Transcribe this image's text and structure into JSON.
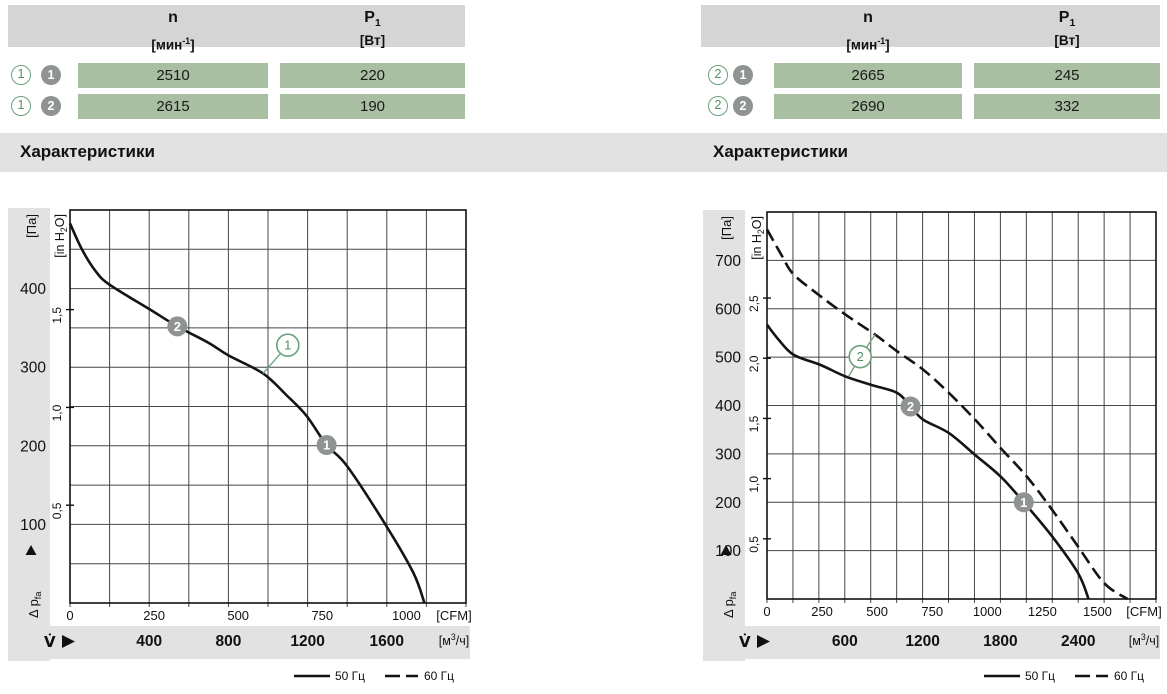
{
  "colors": {
    "accent_green": "#6aa17b",
    "accent_green_text": "#4f9066",
    "marker_gray": "#8f9392",
    "cell_green": "#a9bfa1",
    "band_gray": "#e2e2e2",
    "header_gray": "#d5d5d5",
    "grid": "#474747",
    "ink": "#111111",
    "curve": "#141414"
  },
  "panels": [
    {
      "section_title": "Характеристики",
      "table": {
        "headers": [
          {
            "base": "n",
            "sub": "",
            "unit_parts": [
              [
                "t",
                "[мин"
              ],
              [
                "sup",
                "-1"
              ],
              [
                "t",
                "]"
              ]
            ]
          },
          {
            "base": "P",
            "sub": "1",
            "unit_parts": [
              [
                "t",
                "[Вт]"
              ]
            ]
          }
        ],
        "rows": [
          {
            "curve_ref": "1",
            "point_ref": "1",
            "values": [
              "2510",
              "220"
            ]
          },
          {
            "curve_ref": "1",
            "point_ref": "2",
            "values": [
              "2615",
              "190"
            ]
          }
        ]
      }
    },
    {
      "section_title": "Характеристики",
      "table": {
        "headers": [
          {
            "base": "n",
            "sub": "",
            "unit_parts": [
              [
                "t",
                "[мин"
              ],
              [
                "sup",
                "-1"
              ],
              [
                "t",
                "]"
              ]
            ]
          },
          {
            "base": "P",
            "sub": "1",
            "unit_parts": [
              [
                "t",
                "[Вт]"
              ]
            ]
          }
        ],
        "rows": [
          {
            "curve_ref": "2",
            "point_ref": "1",
            "values": [
              "2665",
              "245"
            ]
          },
          {
            "curve_ref": "2",
            "point_ref": "2",
            "values": [
              "2690",
              "332"
            ]
          }
        ]
      }
    }
  ],
  "chart_data": [
    {
      "type": "line",
      "title": "Характеристики",
      "x1": {
        "label_parts": [
          [
            "t",
            "[м"
          ],
          [
            "sup",
            "3"
          ],
          [
            "t",
            "/ч]"
          ]
        ],
        "min": 0,
        "max": 2000,
        "grid_step": 200,
        "ticks": [
          400,
          800,
          1200,
          1600
        ]
      },
      "x2": {
        "label": "[CFM]",
        "ticks": [
          0,
          250,
          500,
          750,
          1000
        ],
        "to_x1": 1.699
      },
      "y1": {
        "label": "[Па]",
        "min": 0,
        "max": 500,
        "grid_step": 50,
        "ticks": [
          100,
          200,
          300,
          400
        ]
      },
      "y2": {
        "label_parts": [
          [
            "t",
            "[in H"
          ],
          [
            "sub",
            "2"
          ],
          [
            "t",
            "O]"
          ]
        ],
        "ticks": [
          0.5,
          1.0,
          1.5
        ],
        "to_y1": 248.84
      },
      "flow_symbol": "V̇",
      "pressure_axis_parts": [
        [
          "t",
          "Δ p"
        ],
        [
          "sub",
          "fa"
        ]
      ],
      "series": [
        {
          "name": "50 Гц",
          "style": "solid",
          "points": [
            [
              0,
              483
            ],
            [
              60,
              450
            ],
            [
              130,
              422
            ],
            [
              200,
              405
            ],
            [
              400,
              374
            ],
            [
              542,
              352
            ],
            [
              700,
              331
            ],
            [
              800,
              315
            ],
            [
              975,
              292
            ],
            [
              1095,
              264
            ],
            [
              1195,
              238
            ],
            [
              1296,
              201
            ],
            [
              1400,
              174
            ],
            [
              1600,
              97
            ],
            [
              1735,
              38
            ],
            [
              1790,
              0
            ]
          ]
        }
      ],
      "curve_labels": [
        {
          "ref": "1",
          "x": 1100,
          "y": 328,
          "targets": [
            [
              975,
              292
            ]
          ]
        }
      ],
      "point_markers": [
        {
          "ref": "2",
          "x": 542,
          "y": 352
        },
        {
          "ref": "1",
          "x": 1296,
          "y": 201
        }
      ],
      "legend": [
        {
          "style": "solid",
          "label": "50 Гц"
        },
        {
          "style": "dashed",
          "label": "60 Гц"
        }
      ]
    },
    {
      "type": "line",
      "title": "Характеристики",
      "x1": {
        "label_parts": [
          [
            "t",
            "[м"
          ],
          [
            "sup",
            "3"
          ],
          [
            "t",
            "/ч]"
          ]
        ],
        "min": 0,
        "max": 3000,
        "grid_step": 200,
        "ticks": [
          600,
          1200,
          1800,
          2400
        ]
      },
      "x2": {
        "label": "[CFM]",
        "ticks": [
          0,
          250,
          500,
          750,
          1000,
          1250,
          1500
        ],
        "to_x1": 1.699
      },
      "y1": {
        "label": "[Па]",
        "min": 0,
        "max": 800,
        "grid_step": 100,
        "ticks": [
          100,
          200,
          300,
          400,
          500,
          600,
          700
        ]
      },
      "y2": {
        "label_parts": [
          [
            "t",
            "[in H"
          ],
          [
            "sub",
            "2"
          ],
          [
            "t",
            "O]"
          ]
        ],
        "ticks": [
          0.5,
          1.0,
          1.5,
          2.0,
          2.5
        ],
        "to_y1": 248.84
      },
      "flow_symbol": "V̇",
      "pressure_axis_parts": [
        [
          "t",
          "Δ p"
        ],
        [
          "sub",
          "fa"
        ]
      ],
      "series": [
        {
          "name": "50 Гц",
          "style": "solid",
          "points": [
            [
              0,
              567
            ],
            [
              90,
              536
            ],
            [
              205,
              505
            ],
            [
              412,
              484
            ],
            [
              605,
              460
            ],
            [
              800,
              443
            ],
            [
              1004,
              426
            ],
            [
              1107,
              398
            ],
            [
              1203,
              371
            ],
            [
              1403,
              343
            ],
            [
              1604,
              298
            ],
            [
              1802,
              253
            ],
            [
              1980,
              200
            ],
            [
              2200,
              129
            ],
            [
              2400,
              53
            ],
            [
              2480,
              0
            ]
          ]
        },
        {
          "name": "60 Гц",
          "style": "dashed",
          "points": [
            [
              0,
              764
            ],
            [
              116,
              709
            ],
            [
              205,
              671
            ],
            [
              412,
              626
            ],
            [
              605,
              588
            ],
            [
              836,
              546
            ],
            [
              1004,
              512
            ],
            [
              1205,
              474
            ],
            [
              1403,
              426
            ],
            [
              1604,
              371
            ],
            [
              1802,
              312
            ],
            [
              2004,
              253
            ],
            [
              2200,
              184
            ],
            [
              2400,
              108
            ],
            [
              2600,
              33
            ],
            [
              2780,
              0
            ]
          ]
        }
      ],
      "curve_labels": [
        {
          "ref": "2",
          "x": 719,
          "y": 501,
          "targets": [
            [
              629,
              460
            ],
            [
              835,
              547
            ]
          ]
        }
      ],
      "point_markers": [
        {
          "ref": "2",
          "x": 1107,
          "y": 398
        },
        {
          "ref": "1",
          "x": 1980,
          "y": 200
        }
      ],
      "legend": [
        {
          "style": "solid",
          "label": "50 Гц"
        },
        {
          "style": "dashed",
          "label": "60 Гц"
        }
      ]
    }
  ]
}
